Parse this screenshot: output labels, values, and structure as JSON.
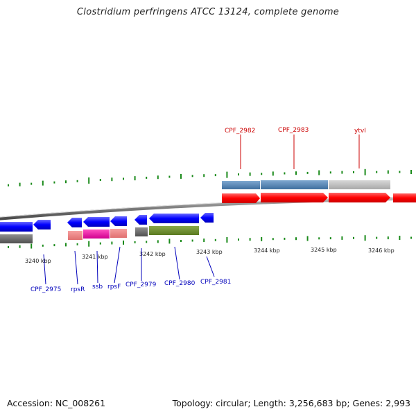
{
  "title": "Clostridium perfringens ATCC 13124, complete genome",
  "footer": {
    "accession": "Accession: NC_008261",
    "topology": "Topology: circular; Length: 3,256,683 bp; Genes: 2,993"
  },
  "colors": {
    "forward_gene": "#ff0000",
    "reverse_gene": "#0000ff",
    "gc_tick": "#1a8a1a",
    "backbone": "#808080"
  },
  "scale_labels": [
    "3240 kbp",
    "3241 kbp",
    "3242 kbp",
    "3243 kbp",
    "3244 kbp",
    "3245 kbp",
    "3246 kbp"
  ],
  "top_labels": [
    "CPF_2982",
    "CPF_2983",
    "ytvI"
  ],
  "bottom_labels": [
    "CPF_2975",
    "rpsR",
    "ssb",
    "rpsF",
    "CPF_2979",
    "CPF_2980",
    "CPF_2981"
  ]
}
